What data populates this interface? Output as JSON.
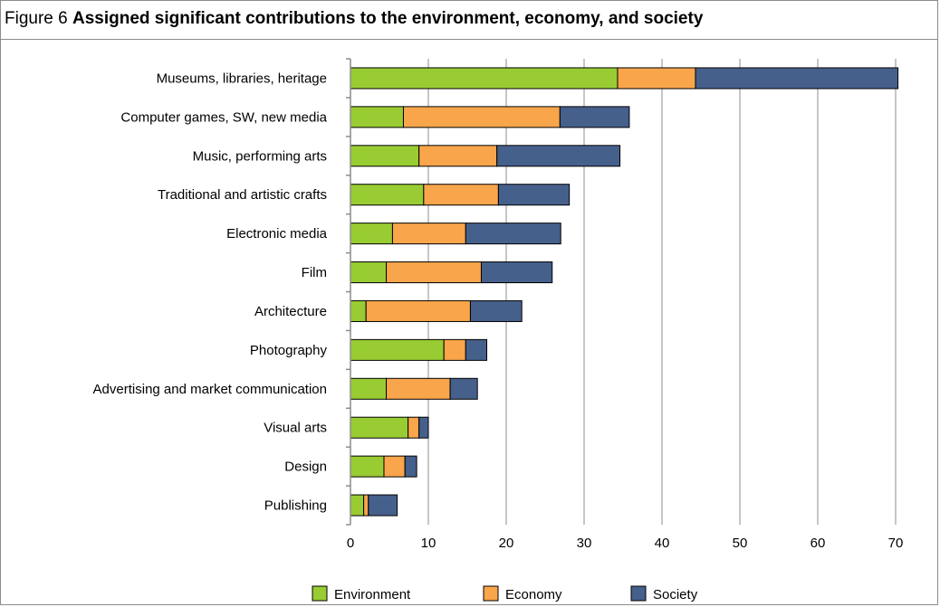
{
  "figure": {
    "number_label": "Figure 6",
    "title": "Assigned significant contributions to the environment, economy, and society"
  },
  "chart_data": {
    "type": "bar",
    "orientation": "horizontal",
    "stacked": true,
    "categories": [
      "Museums, libraries, heritage",
      "Computer games, SW, new media",
      "Music, performing arts",
      "Traditional and artistic crafts",
      "Electronic media",
      "Film",
      "Architecture",
      "Photography",
      "Advertising and market communication",
      "Visual arts",
      "Design",
      "Publishing"
    ],
    "series": [
      {
        "name": "Environment",
        "color": "#99cc33",
        "values": [
          34.3,
          6.8,
          8.8,
          9.4,
          5.4,
          4.6,
          2.0,
          12.0,
          4.6,
          7.4,
          4.3,
          1.7
        ]
      },
      {
        "name": "Economy",
        "color": "#f9a54b",
        "values": [
          10.0,
          20.1,
          10.0,
          9.6,
          9.4,
          12.2,
          13.4,
          2.8,
          8.2,
          1.4,
          2.7,
          0.6
        ]
      },
      {
        "name": "Society",
        "color": "#46608c",
        "values": [
          26.0,
          8.9,
          15.8,
          9.1,
          12.2,
          9.1,
          6.6,
          2.7,
          3.5,
          1.2,
          1.5,
          3.7
        ]
      }
    ],
    "xlim": [
      0,
      70
    ],
    "xticks": [
      "0",
      "10",
      "20",
      "30",
      "40",
      "50",
      "60",
      "70"
    ],
    "grid": "vertical",
    "legend_position": "bottom"
  }
}
